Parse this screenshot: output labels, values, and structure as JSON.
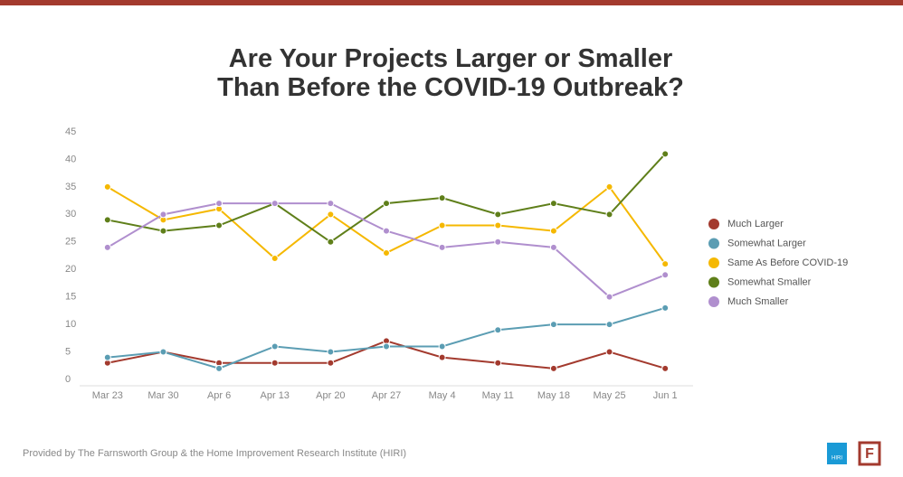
{
  "chart_data": {
    "type": "line",
    "title": "Are Your Projects Larger or Smaller\nThan Before the COVID-19 Outbreak?",
    "categories": [
      "Mar 23",
      "Mar 30",
      "Apr 6",
      "Apr 13",
      "Apr 20",
      "Apr 27",
      "May 4",
      "May 11",
      "May 18",
      "May 25",
      "Jun 1"
    ],
    "series": [
      {
        "name": "Much Larger",
        "color": "#a33a2e",
        "values": [
          3,
          5,
          3,
          3,
          3,
          7,
          4,
          3,
          2,
          5,
          2
        ]
      },
      {
        "name": "Somewhat Larger",
        "color": "#5b9db3",
        "values": [
          4,
          5,
          2,
          6,
          5,
          6,
          6,
          9,
          10,
          10,
          13
        ]
      },
      {
        "name": "Same As Before COVID-19",
        "color": "#f5b800",
        "values": [
          35,
          29,
          31,
          22,
          30,
          23,
          28,
          28,
          27,
          35,
          21
        ]
      },
      {
        "name": "Somewhat Smaller",
        "color": "#5f7f1a",
        "values": [
          29,
          27,
          28,
          32,
          25,
          32,
          33,
          30,
          32,
          30,
          41
        ]
      },
      {
        "name": "Much Smaller",
        "color": "#b08fce",
        "values": [
          24,
          30,
          32,
          32,
          32,
          27,
          24,
          25,
          24,
          15,
          19
        ]
      }
    ],
    "ylim": [
      0,
      45
    ],
    "yticks": [
      0,
      5,
      10,
      15,
      20,
      25,
      30,
      35,
      40,
      45
    ],
    "grid": false,
    "legend": "right"
  },
  "footer": "Provided by The Farnsworth Group & the Home Improvement Research Institute (HIRI)",
  "logos": {
    "hiri": "HIRI",
    "farnsworth": "F"
  }
}
